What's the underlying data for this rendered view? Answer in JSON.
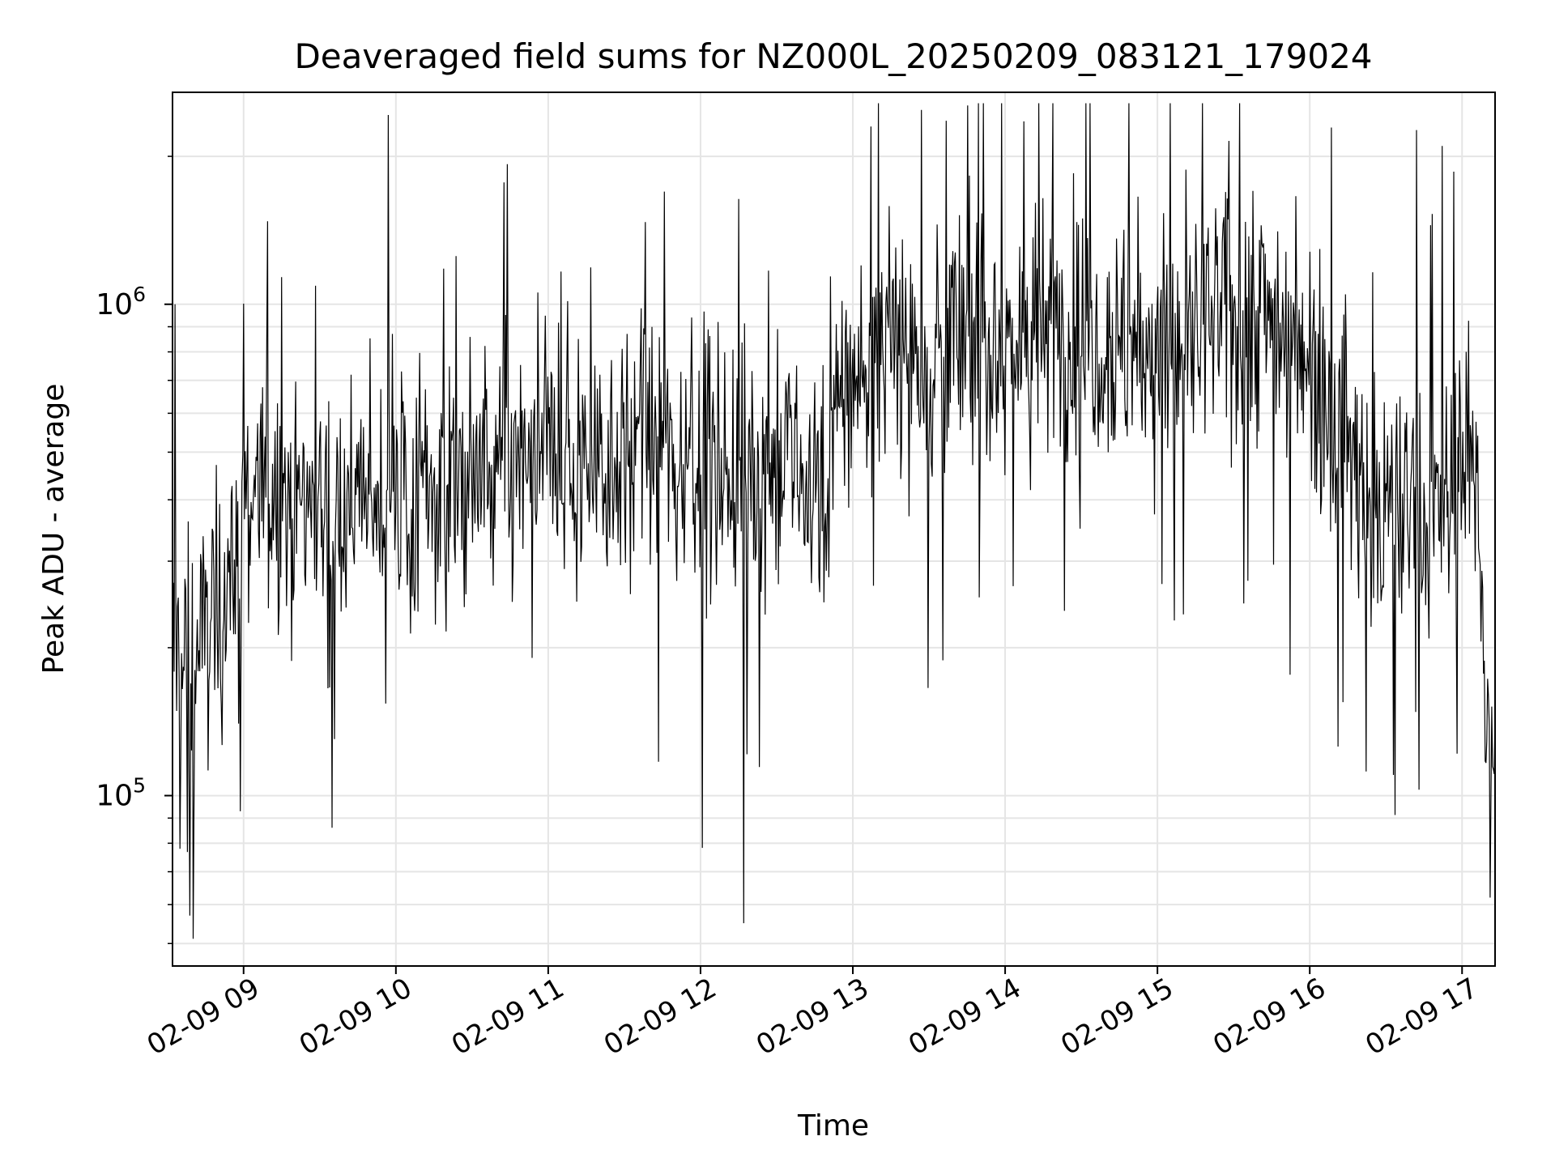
{
  "chart_data": {
    "type": "line",
    "title": "Deaveraged field sums for NZ000L_20250209_083121_179024",
    "xlabel": "Time",
    "ylabel": "Peak ADU - average",
    "x_axis": {
      "type": "time",
      "range": [
        "2025-02-09 08:32",
        "2025-02-09 17:13"
      ],
      "tick_values": [
        "2025-02-09 09:00",
        "2025-02-09 10:00",
        "2025-02-09 11:00",
        "2025-02-09 12:00",
        "2025-02-09 13:00",
        "2025-02-09 14:00",
        "2025-02-09 15:00",
        "2025-02-09 16:00",
        "2025-02-09 17:00"
      ],
      "tick_labels": [
        "02-09 09",
        "02-09 10",
        "02-09 11",
        "02-09 12",
        "02-09 13",
        "02-09 14",
        "02-09 15",
        "02-09 16",
        "02-09 17"
      ]
    },
    "y_axis": {
      "scale": "log",
      "range": [
        45000,
        2700000
      ],
      "major_ticks": [
        {
          "value": 100000,
          "base": "10",
          "exp": "5"
        },
        {
          "value": 1000000,
          "base": "10",
          "exp": "6"
        }
      ],
      "minor_ticks": [
        50000,
        60000,
        70000,
        80000,
        90000,
        200000,
        300000,
        400000,
        500000,
        600000,
        700000,
        800000,
        900000,
        2000000
      ]
    },
    "grid": true,
    "legend": "none",
    "line_color": "#000000",
    "grid_color": "#e5e5e5",
    "series": [
      {
        "x": [
          "08:32",
          "08:36",
          "08:40",
          "08:44",
          "08:48",
          "08:52",
          "08:56",
          "09:00",
          "09:10",
          "09:20",
          "09:30",
          "09:40",
          "09:50",
          "10:00",
          "10:10",
          "10:20",
          "10:30",
          "10:40",
          "10:50",
          "11:00",
          "11:10",
          "11:20",
          "11:30",
          "11:40",
          "11:50",
          "12:00",
          "12:10",
          "12:20",
          "12:30",
          "12:40",
          "12:50",
          "12:55",
          "13:00",
          "13:10",
          "13:20",
          "13:30",
          "13:40",
          "13:50",
          "14:00",
          "14:10",
          "14:20",
          "14:30",
          "14:40",
          "14:50",
          "15:00",
          "15:10",
          "15:20",
          "15:30",
          "15:40",
          "15:50",
          "16:00",
          "16:10",
          "16:20",
          "16:30",
          "16:40",
          "16:50",
          "16:55",
          "17:00",
          "17:05",
          "17:08",
          "17:10",
          "17:13"
        ],
        "y": [
          200000,
          190000,
          175000,
          210000,
          230000,
          250000,
          300000,
          400000,
          420000,
          410000,
          400000,
          390000,
          410000,
          400000,
          420000,
          430000,
          440000,
          450000,
          460000,
          470000,
          480000,
          490000,
          500000,
          510000,
          500000,
          490000,
          470000,
          460000,
          450000,
          440000,
          430000,
          650000,
          700000,
          780000,
          800000,
          810000,
          820000,
          830000,
          850000,
          860000,
          880000,
          900000,
          860000,
          820000,
          780000,
          820000,
          900000,
          950000,
          980000,
          900000,
          820000,
          600000,
          420000,
          380000,
          370000,
          360000,
          420000,
          480000,
          450000,
          300000,
          130000,
          120000
        ]
      }
    ],
    "annotations_peaks": [
      {
        "x": "08:33",
        "y": 1000000
      },
      {
        "x": "08:39",
        "y": 57000
      },
      {
        "x": "09:35",
        "y": 86000
      },
      {
        "x": "12:17",
        "y": 55000
      },
      {
        "x": "13:07",
        "y": 2300000
      },
      {
        "x": "15:28",
        "y": 2150000
      },
      {
        "x": "16:52",
        "y": 2100000
      },
      {
        "x": "17:11",
        "y": 62000
      }
    ]
  }
}
